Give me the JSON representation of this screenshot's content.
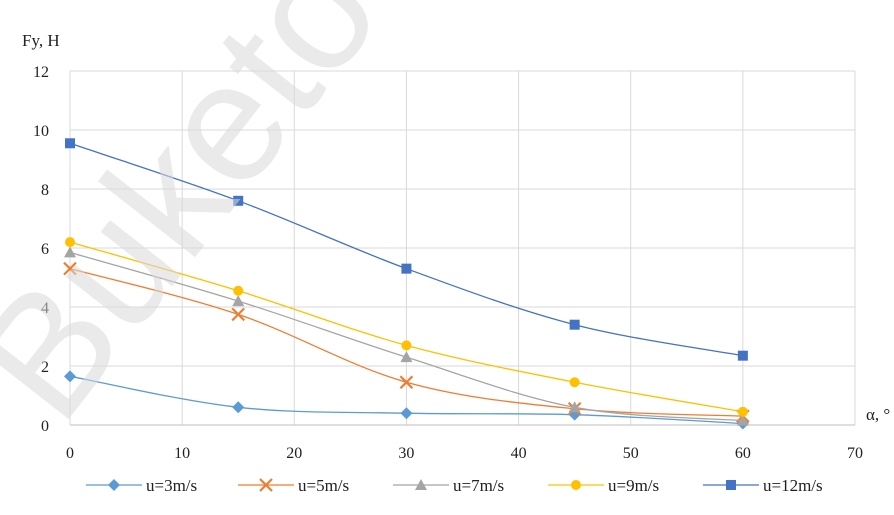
{
  "chart_data": {
    "type": "line",
    "ylabel": "Fy, H",
    "xlabel": "α, °",
    "xlim": [
      0,
      70
    ],
    "ylim": [
      0,
      12
    ],
    "x_ticks": [
      0,
      10,
      20,
      30,
      40,
      50,
      60,
      70
    ],
    "y_ticks": [
      0,
      2,
      4,
      6,
      8,
      10,
      12
    ],
    "grid": true,
    "legend_position": "bottom",
    "watermark": "Buketov U",
    "series": [
      {
        "name": "u=3m/s",
        "marker": "diamond",
        "color": "#5B9BD5",
        "x": [
          0,
          15,
          30,
          45,
          60
        ],
        "values": [
          1.65,
          0.6,
          0.4,
          0.35,
          0.05
        ]
      },
      {
        "name": "u=5m/s",
        "marker": "x",
        "color": "#ED7D31",
        "x": [
          0,
          15,
          30,
          45,
          60
        ],
        "values": [
          5.3,
          3.75,
          1.45,
          0.55,
          0.3
        ]
      },
      {
        "name": "u=7m/s",
        "marker": "triangle",
        "color": "#A5A5A5",
        "x": [
          0,
          15,
          30,
          45,
          60
        ],
        "values": [
          5.85,
          4.2,
          2.3,
          0.6,
          0.15
        ]
      },
      {
        "name": "u=9m/s",
        "marker": "circle",
        "color": "#FFC000",
        "x": [
          0,
          15,
          30,
          45,
          60
        ],
        "values": [
          6.2,
          4.55,
          2.7,
          1.45,
          0.45
        ]
      },
      {
        "name": "u=12m/s",
        "marker": "square",
        "color": "#4472C4",
        "x": [
          0,
          15,
          30,
          45,
          60
        ],
        "values": [
          9.55,
          7.6,
          5.3,
          3.4,
          2.35
        ]
      }
    ]
  }
}
